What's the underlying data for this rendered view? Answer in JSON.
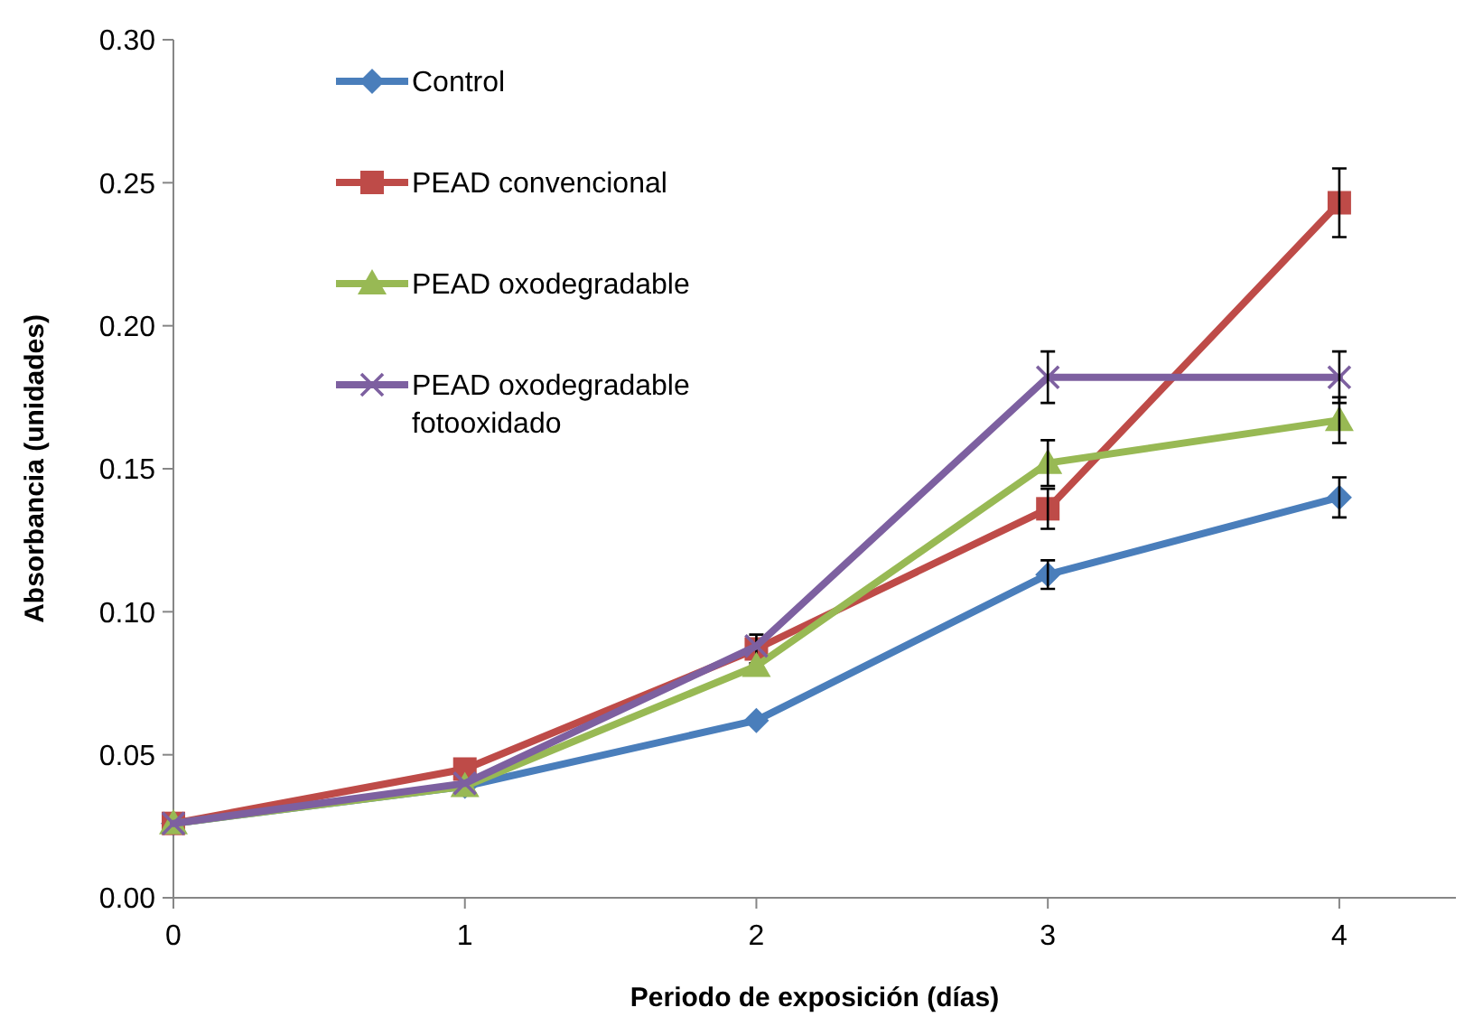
{
  "chart_data": {
    "type": "line",
    "xlabel": "Periodo de exposición (días)",
    "ylabel": "Absorbancia (unidades)",
    "x": [
      0,
      1,
      2,
      3,
      4
    ],
    "xlim": [
      0,
      4.4
    ],
    "xticks": [
      0,
      1,
      2,
      3,
      4
    ],
    "ylim": [
      0,
      0.3
    ],
    "yticks": [
      {
        "value": 0,
        "label": "0.00"
      },
      {
        "value": 0.05,
        "label": "0.05"
      },
      {
        "value": 0.1,
        "label": "0.10"
      },
      {
        "value": 0.15,
        "label": "0.15"
      },
      {
        "value": 0.2,
        "label": "0.20"
      },
      {
        "value": 0.25,
        "label": "0.25"
      },
      {
        "value": 0.3,
        "label": "0.30"
      }
    ],
    "grid": false,
    "legend": "top left",
    "line_style": "solid",
    "series": [
      {
        "name": "Control",
        "color": "#4a7ebb",
        "marker": "diamond",
        "values": [
          0.026,
          0.039,
          0.062,
          0.113,
          0.14
        ],
        "errors": [
          null,
          null,
          null,
          0.005,
          0.007
        ]
      },
      {
        "name": "PEAD convencional",
        "color": "#be4b48",
        "marker": "square",
        "values": [
          0.026,
          0.045,
          0.087,
          0.136,
          0.243
        ],
        "errors": [
          null,
          null,
          0.005,
          0.007,
          0.012
        ]
      },
      {
        "name": "PEAD oxodegradable",
        "color": "#98b954",
        "marker": "triangle",
        "values": [
          0.026,
          0.039,
          0.081,
          0.152,
          0.167
        ],
        "errors": [
          null,
          null,
          null,
          0.008,
          0.008
        ]
      },
      {
        "name": "PEAD oxodegradable fotooxidado",
        "color": "#7d60a0",
        "marker": "cross",
        "values": [
          0.026,
          0.04,
          0.088,
          0.182,
          0.182
        ],
        "errors": [
          null,
          null,
          null,
          0.009,
          0.009
        ]
      }
    ]
  }
}
